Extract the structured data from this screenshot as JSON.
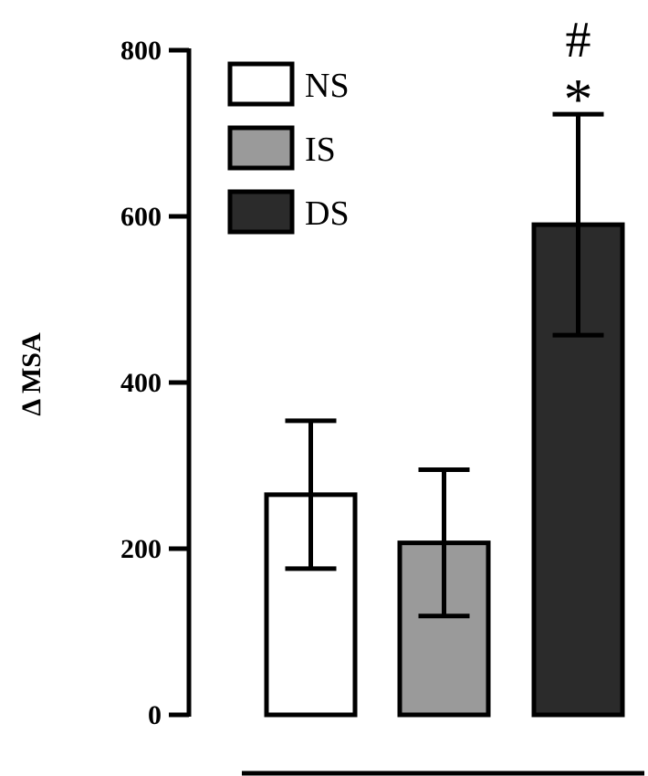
{
  "chart_data": {
    "type": "bar",
    "categories": [
      "NS",
      "IS",
      "DS"
    ],
    "values": [
      265,
      207,
      590
    ],
    "errors": [
      89,
      88,
      133
    ],
    "colors": [
      "#ffffff",
      "#9a9a9a",
      "#2b2b2b"
    ],
    "ylabel": "Δ MSA",
    "ylim": [
      0,
      800
    ],
    "yticks": [
      "0",
      "200",
      "400",
      "600",
      "800"
    ],
    "legend": {
      "placement": "top-left",
      "entries": [
        "NS",
        "IS",
        "DS"
      ]
    },
    "annotations": [
      {
        "category": "DS",
        "symbol_upper": "#",
        "symbol_lower": "*"
      }
    ]
  }
}
